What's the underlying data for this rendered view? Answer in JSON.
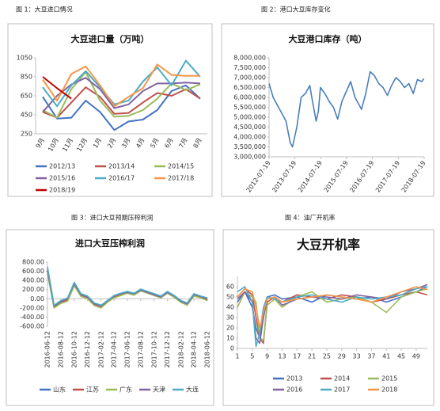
{
  "chart_data": [
    {
      "type": "line",
      "caption": "图 1：大豆进口情况",
      "title": "大豆进口量（万吨）",
      "categories": [
        "9月",
        "10月",
        "11月",
        "12月",
        "1月",
        "2月",
        "3月",
        "4月",
        "5月",
        "6月",
        "7月",
        "8月"
      ],
      "ylim": [
        250,
        1050
      ],
      "yticks": [
        250,
        450,
        650,
        850,
        1050
      ],
      "grid": false,
      "legend": "bottom",
      "series": [
        {
          "name": "2012/13",
          "color": "#4472c4",
          "values": [
            640,
            410,
            420,
            600,
            480,
            290,
            380,
            400,
            500,
            700,
            760,
            620
          ]
        },
        {
          "name": "2013/14",
          "color": "#c0504d",
          "values": [
            480,
            420,
            580,
            740,
            640,
            460,
            470,
            580,
            680,
            650,
            720,
            620
          ]
        },
        {
          "name": "2014/15",
          "color": "#9bbb59",
          "values": [
            500,
            420,
            720,
            900,
            600,
            430,
            440,
            500,
            620,
            780,
            710,
            770
          ]
        },
        {
          "name": "2015/16",
          "color": "#8064a2",
          "values": [
            480,
            650,
            770,
            840,
            720,
            520,
            560,
            700,
            780,
            780,
            790,
            780
          ]
        },
        {
          "name": "2016/17",
          "color": "#4bacc6",
          "values": [
            740,
            540,
            760,
            910,
            740,
            560,
            600,
            800,
            950,
            760,
            1020,
            850
          ]
        },
        {
          "name": "2017/18",
          "color": "#f79646",
          "values": [
            820,
            600,
            880,
            960,
            760,
            540,
            640,
            730,
            980,
            870,
            860,
            860
          ]
        },
        {
          "name": "2018/19",
          "color": "#c00000",
          "values": [
            850,
            730,
            620,
            null,
            null,
            null,
            null,
            null,
            null,
            null,
            null,
            null
          ]
        }
      ]
    },
    {
      "type": "line",
      "caption": "图 2：港口大豆库存变化",
      "title": "大豆港口库存（吨）",
      "x": [
        "2012-07-19",
        "2012-09-15",
        "2012-11-15",
        "2013-01-15",
        "2013-03-15",
        "2013-05-15",
        "2013-06-15",
        "2013-08-15",
        "2013-10-15",
        "2013-12-15",
        "2014-02-15",
        "2014-03-15",
        "2014-05-15",
        "2014-06-15",
        "2014-07-15",
        "2014-09-15",
        "2014-11-15",
        "2015-01-15",
        "2015-03-15",
        "2015-05-15",
        "2015-07-15",
        "2015-09-15",
        "2015-11-15",
        "2016-01-15",
        "2016-02-15",
        "2016-04-15",
        "2016-06-15",
        "2016-08-15",
        "2016-10-15",
        "2016-12-15",
        "2017-02-15",
        "2017-04-15",
        "2017-06-15",
        "2017-08-15",
        "2017-10-15",
        "2017-12-15",
        "2018-02-15",
        "2018-04-15",
        "2018-06-15",
        "2018-07-15"
      ],
      "xlim": [
        "2012-07-19",
        "2018-07-19"
      ],
      "xticks": [
        "2012-07-19",
        "2013-07-19",
        "2014-07-19",
        "2015-07-19",
        "2016-07-19",
        "2017-07-19",
        "2018-07-19"
      ],
      "ylim": [
        3000000,
        8000000
      ],
      "yticks": [
        {
          "value": 3000000,
          "label": "3,000,000"
        },
        {
          "value": 3500000,
          "label": "3,500,000"
        },
        {
          "value": 4000000,
          "label": "4,000,000"
        },
        {
          "value": 4500000,
          "label": "4,500,000"
        },
        {
          "value": 5000000,
          "label": "5,000,000"
        },
        {
          "value": 5500000,
          "label": "5,500,000"
        },
        {
          "value": 6000000,
          "label": "6,000,000"
        },
        {
          "value": 6500000,
          "label": "6,500,000"
        },
        {
          "value": 7000000,
          "label": "7,000,000"
        },
        {
          "value": 7500000,
          "label": "7,500,000"
        },
        {
          "value": 8000000,
          "label": "8,000,000"
        }
      ],
      "grid": false,
      "series": [
        {
          "color": "#4a7ebb",
          "values": [
            6700000,
            6000000,
            5600000,
            5200000,
            4800000,
            3700000,
            3500000,
            4500000,
            6000000,
            6200000,
            6600000,
            6000000,
            4800000,
            5300000,
            6500000,
            6200000,
            5800000,
            5500000,
            4900000,
            5800000,
            6300000,
            6800000,
            6000000,
            5600000,
            5400000,
            6200000,
            7300000,
            7100000,
            6700000,
            6500000,
            6100000,
            6600000,
            7000000,
            6800000,
            6500000,
            6700000,
            6200000,
            6900000,
            6800000,
            6950000
          ]
        }
      ]
    },
    {
      "type": "line",
      "caption": "图 3：进口大豆预期压榨利润",
      "title": "进口大豆压榨利润",
      "x": [
        "2016-06-12",
        "2016-07-12",
        "2016-08-12",
        "2016-09-12",
        "2016-10-12",
        "2016-11-12",
        "2016-12-12",
        "2017-01-12",
        "2017-02-12",
        "2017-03-12",
        "2017-04-12",
        "2017-05-12",
        "2017-06-12",
        "2017-07-12",
        "2017-08-12",
        "2017-09-12",
        "2017-10-12",
        "2017-11-12",
        "2017-12-12",
        "2018-01-12",
        "2018-02-12",
        "2018-03-12",
        "2018-04-12",
        "2018-05-12",
        "2018-06-12"
      ],
      "xlim": [
        "2016-06-12",
        "2018-06-12"
      ],
      "xticks": [
        "2016-06-12",
        "2016-08-12",
        "2016-10-12",
        "2016-12-12",
        "2017-02-12",
        "2017-04-12",
        "2017-06-12",
        "2017-08-12",
        "2017-10-12",
        "2017-12-12",
        "2018-02-12",
        "2018-04-12",
        "2018-06-12"
      ],
      "ylim": [
        -600,
        800
      ],
      "yticks": [
        {
          "value": -600,
          "label": "-600.00"
        },
        {
          "value": -400,
          "label": "-400.00"
        },
        {
          "value": -200,
          "label": "-200.00"
        },
        {
          "value": 0,
          "label": "0.00"
        },
        {
          "value": 200,
          "label": "200.00"
        },
        {
          "value": 400,
          "label": "400.00"
        },
        {
          "value": 600,
          "label": "600.00"
        },
        {
          "value": 800,
          "label": "800.00"
        }
      ],
      "grid": false,
      "legend": "bottom",
      "series": [
        {
          "name": "山东",
          "color": "#4472c4",
          "values": [
            650,
            -150,
            -50,
            0,
            350,
            100,
            50,
            -100,
            -150,
            -50,
            50,
            100,
            150,
            100,
            200,
            150,
            100,
            50,
            150,
            50,
            -50,
            -100,
            100,
            50,
            0
          ]
        },
        {
          "name": "江苏",
          "color": "#c0504d",
          "values": [
            600,
            -180,
            -80,
            -20,
            300,
            80,
            30,
            -120,
            -170,
            -60,
            40,
            90,
            130,
            90,
            180,
            130,
            80,
            30,
            130,
            40,
            -70,
            -120,
            80,
            40,
            -20
          ]
        },
        {
          "name": "广东",
          "color": "#9bbb59",
          "values": [
            550,
            -200,
            -100,
            -50,
            280,
            50,
            0,
            -150,
            -200,
            -80,
            20,
            70,
            120,
            80,
            170,
            120,
            70,
            20,
            120,
            30,
            -80,
            -140,
            60,
            20,
            -40
          ]
        },
        {
          "name": "天津",
          "color": "#8064a2",
          "values": [
            620,
            -160,
            -60,
            10,
            330,
            90,
            40,
            -110,
            -160,
            -50,
            60,
            110,
            140,
            110,
            190,
            140,
            90,
            40,
            140,
            60,
            -60,
            -110,
            90,
            50,
            10
          ]
        },
        {
          "name": "大连",
          "color": "#4bacc6",
          "values": [
            700,
            -140,
            -40,
            20,
            360,
            110,
            60,
            -90,
            -140,
            -40,
            70,
            120,
            160,
            120,
            210,
            160,
            110,
            60,
            160,
            70,
            -40,
            -90,
            110,
            60,
            20
          ]
        }
      ]
    },
    {
      "type": "line",
      "caption": "图 4：油厂开机率",
      "title": "大豆开机率",
      "x": [
        1,
        3,
        5,
        6,
        7,
        8,
        9,
        11,
        13,
        17,
        21,
        25,
        29,
        33,
        37,
        41,
        45,
        49,
        52
      ],
      "xlim": [
        1,
        52
      ],
      "xticks": [
        1,
        5,
        9,
        13,
        17,
        21,
        25,
        29,
        33,
        37,
        41,
        45,
        49
      ],
      "ylim": [
        0,
        70
      ],
      "yticks": [
        0,
        10,
        20,
        30,
        40,
        50,
        60
      ],
      "grid": false,
      "legend": "bottom",
      "series": [
        {
          "name": "2013",
          "color": "#4472c4",
          "values": [
            45,
            55,
            40,
            20,
            10,
            30,
            50,
            52,
            48,
            50,
            45,
            52,
            50,
            48,
            50,
            45,
            50,
            55,
            60
          ]
        },
        {
          "name": "2014",
          "color": "#c0504d",
          "values": [
            50,
            58,
            52,
            30,
            10,
            5,
            45,
            50,
            45,
            52,
            50,
            48,
            52,
            50,
            45,
            48,
            52,
            55,
            52
          ]
        },
        {
          "name": "2015",
          "color": "#9bbb59",
          "values": [
            40,
            55,
            50,
            45,
            10,
            8,
            42,
            48,
            40,
            50,
            55,
            45,
            48,
            50,
            45,
            35,
            50,
            55,
            58
          ]
        },
        {
          "name": "2016",
          "color": "#8064a2",
          "values": [
            48,
            55,
            45,
            10,
            5,
            30,
            48,
            50,
            42,
            48,
            50,
            50,
            48,
            52,
            50,
            48,
            55,
            58,
            62
          ]
        },
        {
          "name": "2017",
          "color": "#4bacc6",
          "values": [
            55,
            60,
            45,
            2,
            15,
            40,
            50,
            48,
            45,
            50,
            52,
            48,
            45,
            50,
            48,
            50,
            52,
            58,
            60
          ]
        },
        {
          "name": "2018",
          "color": "#f79646",
          "values": [
            50,
            58,
            55,
            40,
            20,
            35,
            48,
            50,
            45,
            48,
            50,
            52,
            50,
            48,
            45,
            50,
            55,
            60,
            57
          ]
        }
      ]
    }
  ]
}
